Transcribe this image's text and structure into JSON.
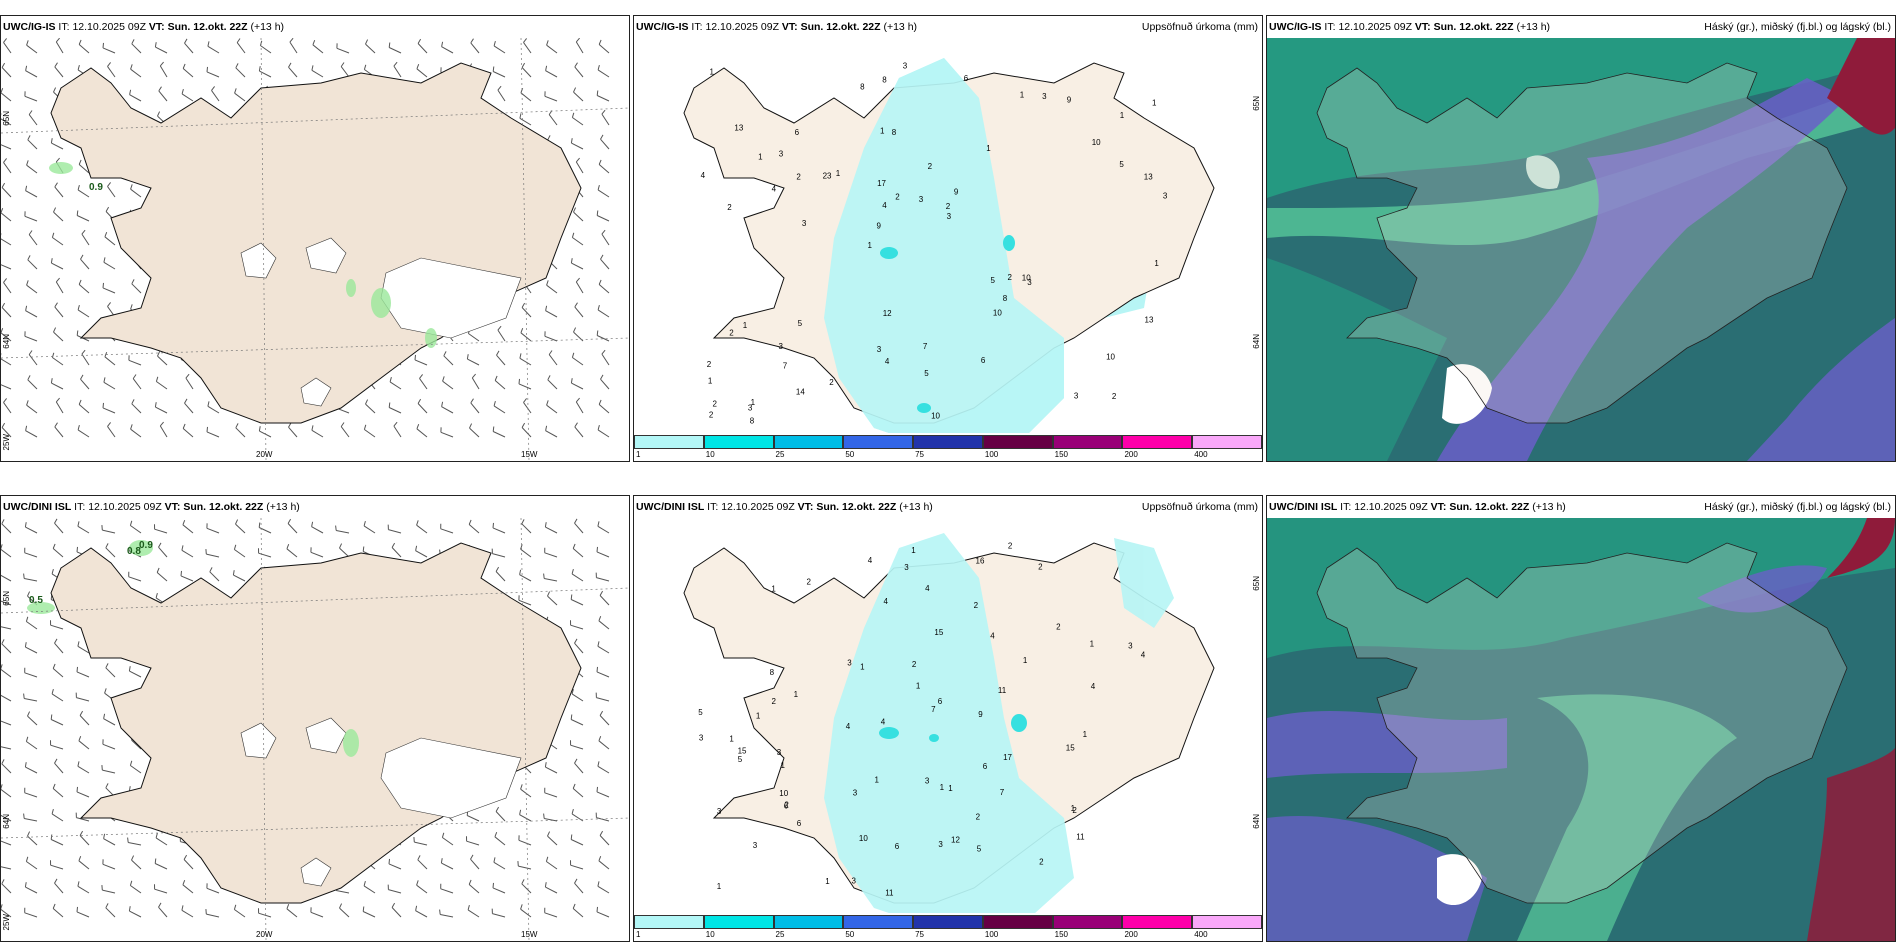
{
  "rows": [
    {
      "model": "UWC/IG-IS",
      "it_label": "IT:",
      "it_value": "12.10.2025 09Z",
      "vt_label": "VT:",
      "vt_value": "Sun. 12.okt. 22Z",
      "lead": "(+13 h)",
      "wind_panel": {
        "labels": [
          {
            "text": "0.9"
          }
        ],
        "lat_labels": [
          "65N",
          "64N",
          "25W"
        ],
        "lon_labels": [
          "20W",
          "15W"
        ]
      },
      "precip_panel": {
        "title": "Uppsöfnuð úrkoma (mm)",
        "lat_labels": [
          "65N",
          "64N"
        ],
        "values": [
          "2",
          "2",
          "1",
          "1",
          "1",
          "1",
          "1",
          "2",
          "1",
          "1",
          "1",
          "7",
          "8",
          "9",
          "3",
          "13",
          "8",
          "3",
          "5",
          "5",
          "9",
          "3",
          "4",
          "6",
          "1",
          "5",
          "3",
          "10",
          "10",
          "10",
          "23",
          "4",
          "10",
          "14",
          "13",
          "2",
          "2",
          "4",
          "3",
          "2",
          "10",
          "1",
          "8",
          "6",
          "3",
          "8",
          "2",
          "7",
          "9",
          "3",
          "3",
          "4",
          "3",
          "3",
          "3",
          "6",
          "8",
          "2",
          "13",
          "12",
          "2",
          "2",
          "2",
          "2",
          "1",
          "1",
          "1",
          "17",
          "5",
          "3"
        ]
      },
      "cloud_panel": {
        "title": "Háský (gr.), miðský (fj.bl.) og lágský (bl.)"
      }
    },
    {
      "model": "UWC/DINI ISL",
      "it_label": "IT:",
      "it_value": "12.10.2025 09Z",
      "vt_label": "VT:",
      "vt_value": "Sun. 12.okt. 22Z",
      "lead": "(+13 h)",
      "wind_panel": {
        "labels": [
          {
            "text": "0.9"
          },
          {
            "text": "0.8"
          },
          {
            "text": "0.5"
          }
        ],
        "lat_labels": [
          "65N",
          "64N",
          "25W"
        ],
        "lon_labels": [
          "20W",
          "15W"
        ]
      },
      "precip_panel": {
        "title": "Uppsöfnuð úrkoma (mm)",
        "lat_labels": [
          "65N",
          "64N"
        ],
        "values": [
          "3",
          "2",
          "2",
          "2",
          "1",
          "1",
          "1",
          "2",
          "1",
          "1",
          "1",
          "1",
          "7",
          "7",
          "11",
          "4",
          "11",
          "5",
          "6",
          "3",
          "5",
          "3",
          "4",
          "6",
          "1",
          "10",
          "15",
          "16",
          "15",
          "17",
          "8",
          "6",
          "12",
          "3",
          "2",
          "5",
          "3",
          "9",
          "4",
          "15",
          "4",
          "4",
          "6",
          "3",
          "3",
          "2",
          "6",
          "3",
          "3",
          "2",
          "1",
          "1",
          "2",
          "4",
          "4",
          "1",
          "3",
          "1",
          "1",
          "1",
          "1",
          "2",
          "2",
          "4",
          "1",
          "3",
          "10",
          "11",
          "1",
          "2"
        ]
      },
      "cloud_panel": {
        "title": "Háský (gr.), miðský (fj.bl.) og lágský (bl.)"
      }
    }
  ],
  "colorbar": {
    "ticks": [
      "1",
      "10",
      "25",
      "50",
      "75",
      "100",
      "150",
      "200",
      "400"
    ],
    "colors": [
      "#b3f7f7",
      "#00e5e5",
      "#00bde6",
      "#3366e6",
      "#2233aa",
      "#660044",
      "#990077",
      "#ff00aa",
      "#f9a8f9"
    ]
  },
  "colors": {
    "land": "#f1e4d6",
    "coast": "#111111",
    "glacier": "#ffffff",
    "precip_light": "#b7f5f5",
    "precip_mid": "#36e0e0",
    "cloud_dark": "#2a6e73",
    "cloud_teal": "#1fc48f",
    "cloud_green": "#66e6a6",
    "cloud_purple": "#6a5fc8",
    "cloud_maroon": "#8f1b3a"
  }
}
